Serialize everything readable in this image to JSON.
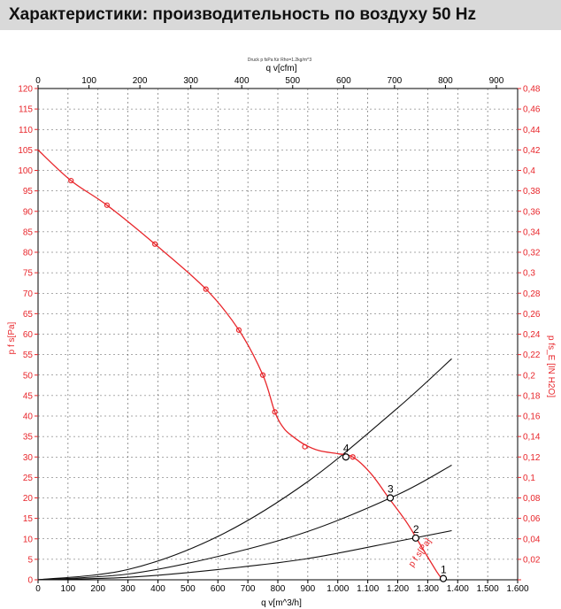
{
  "header": {
    "title": "Характеристики: производительность по воздуху 50 Hz"
  },
  "chart_data": {
    "type": "line",
    "note": "Druck p fsPa für Rho=1.2kg/m^3",
    "x_bottom": {
      "label": "q v[m^3/h]",
      "min": 0,
      "max": 1600,
      "ticks": [
        "0",
        "100",
        "200",
        "300",
        "400",
        "500",
        "600",
        "700",
        "800",
        "900",
        "1.000",
        "1.100",
        "1.200",
        "1.300",
        "1.400",
        "1.500",
        "1.600"
      ]
    },
    "x_top": {
      "label": "q v[cfm]",
      "min": 0,
      "max": 941.75,
      "ticks": [
        "0",
        "100",
        "200",
        "300",
        "400",
        "500",
        "600",
        "700",
        "800",
        "900"
      ]
    },
    "y_left": {
      "label": "p f s[Pa]",
      "min": 0,
      "max": 120,
      "ticks": [
        "0",
        "5",
        "10",
        "15",
        "20",
        "25",
        "30",
        "35",
        "40",
        "45",
        "50",
        "55",
        "60",
        "65",
        "70",
        "75",
        "80",
        "85",
        "90",
        "95",
        "100",
        "105",
        "110",
        "115",
        "120"
      ]
    },
    "y_right": {
      "label": "p fs_E [IN H2O]",
      "min": 0,
      "max": 0.48,
      "ticks": [
        "0",
        "0,02",
        "0,04",
        "0,06",
        "0,08",
        "0,1",
        "0,12",
        "0,14",
        "0,16",
        "0,18",
        "0,2",
        "0,22",
        "0,24",
        "0,26",
        "0,28",
        "0,3",
        "0,32",
        "0,34",
        "0,36",
        "0,38",
        "0,4",
        "0,42",
        "0,44",
        "0,46",
        "0,48"
      ]
    },
    "grid": true,
    "series": [
      {
        "name": "p f s[Pa]",
        "color": "#e8262b",
        "x": [
          0,
          110,
          230,
          390,
          560,
          670,
          750,
          790,
          820,
          850,
          890,
          940,
          1000,
          1050,
          1110,
          1170,
          1230,
          1280,
          1330,
          1350
        ],
        "y": [
          105,
          97.5,
          91.5,
          82,
          71,
          61,
          50,
          41,
          37,
          35,
          33,
          31.5,
          30.8,
          30,
          26,
          20,
          14,
          8,
          2,
          0
        ],
        "markers_x": [
          110,
          230,
          390,
          560,
          670,
          750,
          790,
          890,
          1050
        ],
        "markers_y": [
          97.5,
          91.5,
          82,
          71,
          61,
          50,
          41,
          32.5,
          30
        ]
      },
      {
        "name": "",
        "color": "#111111",
        "x": [
          0,
          300,
          600,
          900,
          1200,
          1380
        ],
        "y": [
          0,
          0.6,
          2.5,
          5.2,
          9.4,
          12
        ]
      },
      {
        "name": "",
        "color": "#111111",
        "x": [
          0,
          300,
          600,
          900,
          1200,
          1380
        ],
        "y": [
          0,
          1.4,
          5.7,
          11.8,
          20.8,
          28
        ]
      },
      {
        "name": "",
        "color": "#111111",
        "x": [
          0,
          300,
          600,
          900,
          1200,
          1380
        ],
        "y": [
          0,
          2.5,
          10.6,
          24,
          42,
          54
        ]
      }
    ],
    "operating_points": [
      {
        "label": "1",
        "x": 1352,
        "y": 0.3
      },
      {
        "label": "2",
        "x": 1260,
        "y": 10.2
      },
      {
        "label": "3",
        "x": 1175,
        "y": 20
      },
      {
        "label": "4",
        "x": 1027,
        "y": 30
      }
    ]
  }
}
